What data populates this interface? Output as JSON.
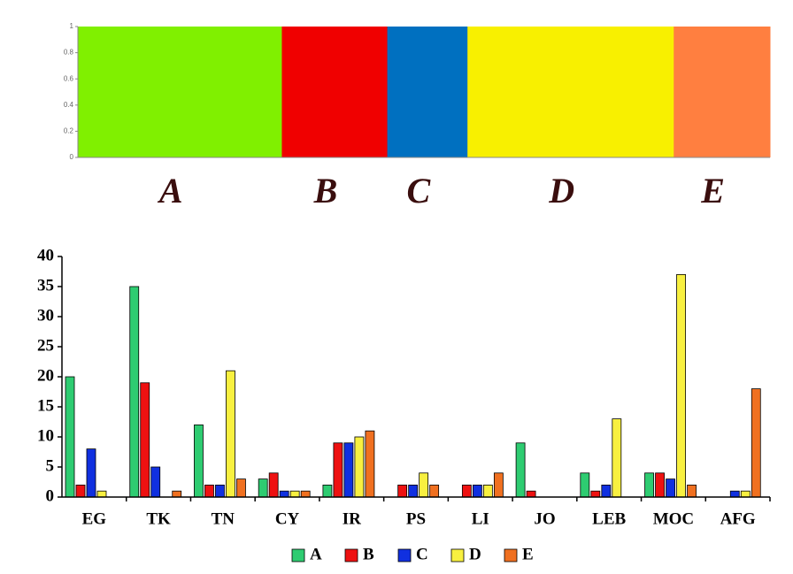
{
  "chart_data": [
    {
      "type": "structure",
      "categories": [
        "A",
        "B",
        "C",
        "D",
        "E"
      ],
      "values": [
        1,
        1,
        1,
        1,
        1
      ],
      "colors": [
        "#80f000",
        "#f00000",
        "#0070c0",
        "#f8f000",
        "#ff7f40"
      ],
      "ylim": [
        0,
        1
      ],
      "yticks": [
        0,
        0.2,
        0.4,
        0.6,
        0.8,
        1
      ]
    },
    {
      "type": "bar",
      "categories": [
        "EG",
        "TK",
        "TN",
        "CY",
        "IR",
        "PS",
        "LI",
        "JO",
        "LEB",
        "MOC",
        "AFG"
      ],
      "series": [
        {
          "name": "A",
          "color": "#2ecc71",
          "values": [
            20,
            35,
            12,
            3,
            2,
            0,
            0,
            9,
            4,
            4,
            0
          ]
        },
        {
          "name": "B",
          "color": "#ee1111",
          "values": [
            2,
            19,
            2,
            4,
            9,
            2,
            2,
            1,
            1,
            4,
            0
          ]
        },
        {
          "name": "C",
          "color": "#1030e0",
          "values": [
            8,
            5,
            2,
            1,
            9,
            2,
            2,
            0,
            2,
            3,
            1
          ]
        },
        {
          "name": "D",
          "color": "#f8f040",
          "values": [
            1,
            0,
            21,
            1,
            10,
            4,
            2,
            0,
            13,
            37,
            1
          ]
        },
        {
          "name": "E",
          "color": "#f07020",
          "values": [
            0,
            1,
            3,
            1,
            11,
            2,
            4,
            0,
            0,
            2,
            18
          ]
        }
      ],
      "ylim": [
        0,
        40
      ],
      "yticks": [
        0,
        5,
        10,
        15,
        20,
        25,
        30,
        35,
        40
      ],
      "legend": "bottom"
    }
  ]
}
